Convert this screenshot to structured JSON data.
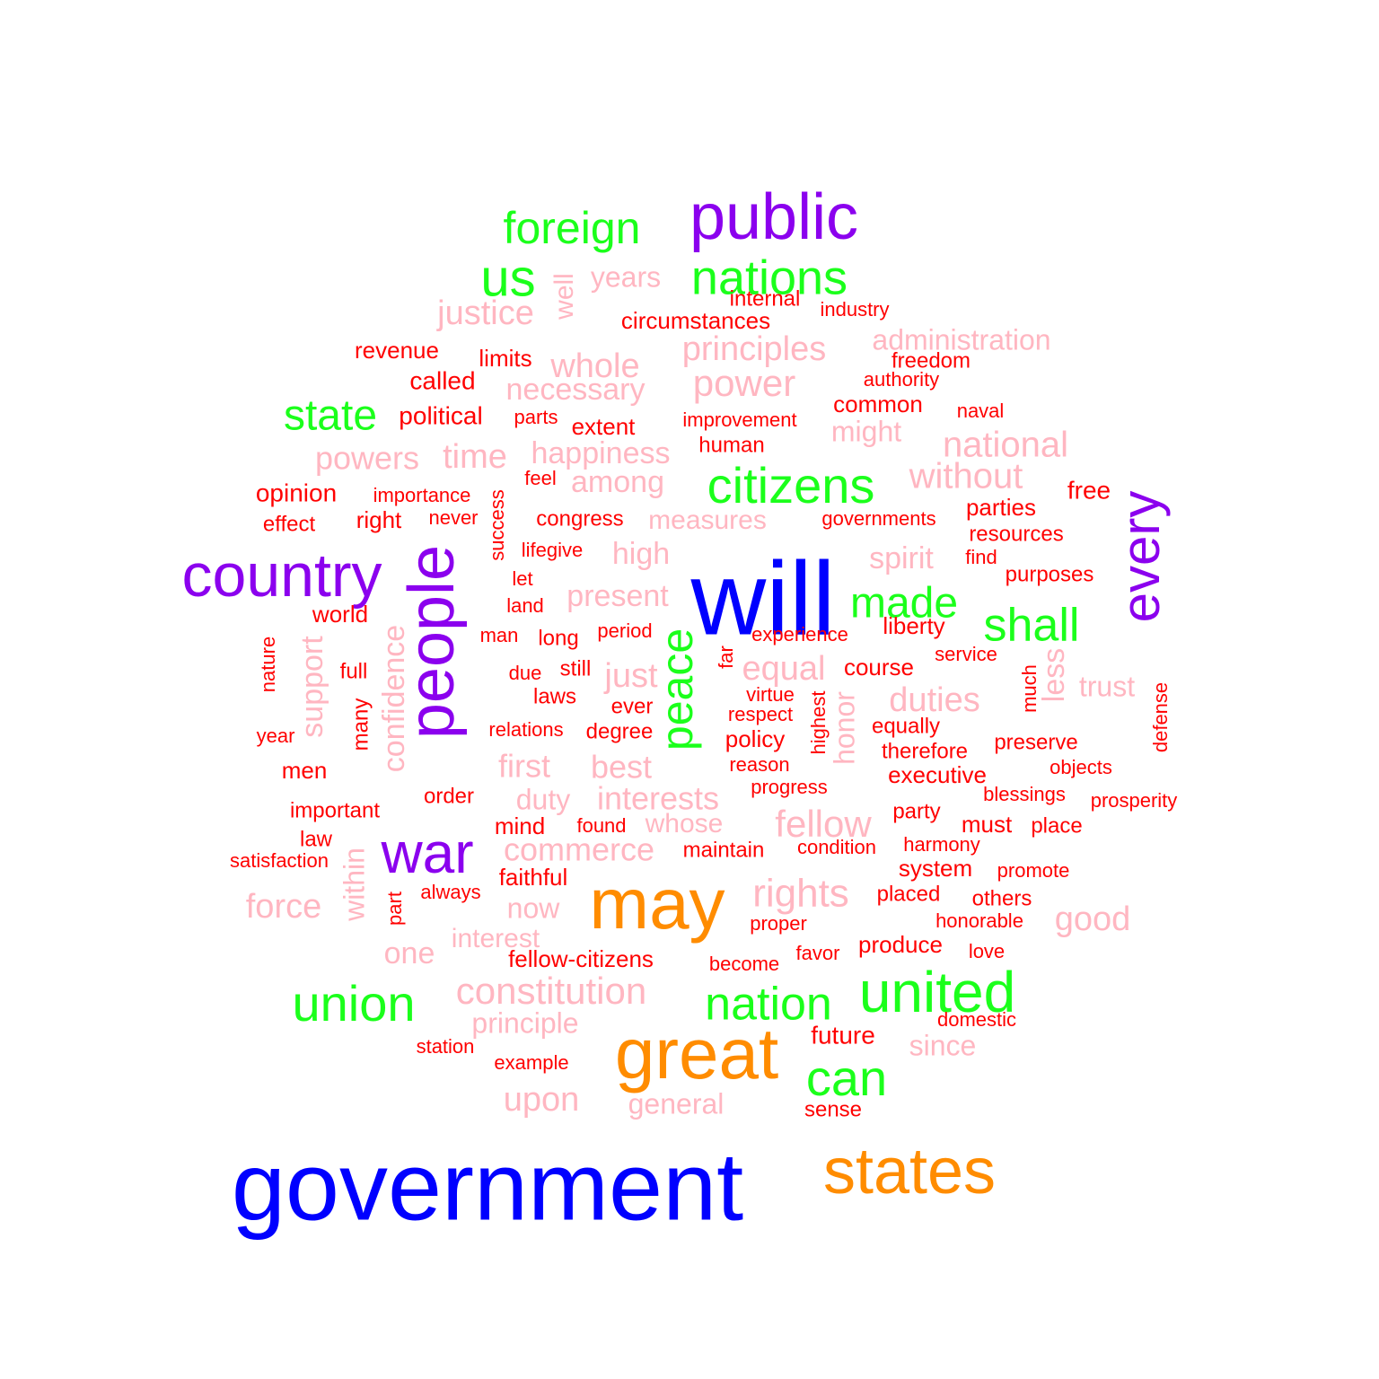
{
  "palette": {
    "blue": "#0000ff",
    "orange": "#ff8c00",
    "purple": "#8b00ee",
    "green": "#1bff1b",
    "pink": "#ffb6c1",
    "red": "#ff0000"
  },
  "words": [
    {
      "text": "will",
      "color": "blue"
    },
    {
      "text": "government",
      "color": "blue"
    },
    {
      "text": "may",
      "color": "orange"
    },
    {
      "text": "great",
      "color": "orange"
    },
    {
      "text": "states",
      "color": "orange"
    },
    {
      "text": "public",
      "color": "purple"
    },
    {
      "text": "country",
      "color": "purple"
    },
    {
      "text": "people",
      "color": "purple"
    },
    {
      "text": "every",
      "color": "purple"
    },
    {
      "text": "war",
      "color": "purple"
    },
    {
      "text": "foreign",
      "color": "green"
    },
    {
      "text": "us",
      "color": "green"
    },
    {
      "text": "nations",
      "color": "green"
    },
    {
      "text": "state",
      "color": "green"
    },
    {
      "text": "citizens",
      "color": "green"
    },
    {
      "text": "made",
      "color": "green"
    },
    {
      "text": "shall",
      "color": "green"
    },
    {
      "text": "peace",
      "color": "green"
    },
    {
      "text": "union",
      "color": "green"
    },
    {
      "text": "nation",
      "color": "green"
    },
    {
      "text": "united",
      "color": "green"
    },
    {
      "text": "can",
      "color": "green"
    },
    {
      "text": "years",
      "color": "pink"
    },
    {
      "text": "well",
      "color": "pink"
    },
    {
      "text": "justice",
      "color": "pink"
    },
    {
      "text": "administration",
      "color": "pink"
    },
    {
      "text": "principles",
      "color": "pink"
    },
    {
      "text": "whole",
      "color": "pink"
    },
    {
      "text": "necessary",
      "color": "pink"
    },
    {
      "text": "power",
      "color": "pink"
    },
    {
      "text": "might",
      "color": "pink"
    },
    {
      "text": "national",
      "color": "pink"
    },
    {
      "text": "powers",
      "color": "pink"
    },
    {
      "text": "time",
      "color": "pink"
    },
    {
      "text": "happiness",
      "color": "pink"
    },
    {
      "text": "among",
      "color": "pink"
    },
    {
      "text": "without",
      "color": "pink"
    },
    {
      "text": "measures",
      "color": "pink"
    },
    {
      "text": "high",
      "color": "pink"
    },
    {
      "text": "spirit",
      "color": "pink"
    },
    {
      "text": "present",
      "color": "pink"
    },
    {
      "text": "confidence",
      "color": "pink"
    },
    {
      "text": "support",
      "color": "pink"
    },
    {
      "text": "just",
      "color": "pink"
    },
    {
      "text": "equal",
      "color": "pink"
    },
    {
      "text": "duties",
      "color": "pink"
    },
    {
      "text": "less",
      "color": "pink"
    },
    {
      "text": "trust",
      "color": "pink"
    },
    {
      "text": "honor",
      "color": "pink"
    },
    {
      "text": "first",
      "color": "pink"
    },
    {
      "text": "best",
      "color": "pink"
    },
    {
      "text": "duty",
      "color": "pink"
    },
    {
      "text": "interests",
      "color": "pink"
    },
    {
      "text": "whose",
      "color": "pink"
    },
    {
      "text": "fellow",
      "color": "pink"
    },
    {
      "text": "commerce",
      "color": "pink"
    },
    {
      "text": "within",
      "color": "pink"
    },
    {
      "text": "force",
      "color": "pink"
    },
    {
      "text": "now",
      "color": "pink"
    },
    {
      "text": "rights",
      "color": "pink"
    },
    {
      "text": "good",
      "color": "pink"
    },
    {
      "text": "interest",
      "color": "pink"
    },
    {
      "text": "one",
      "color": "pink"
    },
    {
      "text": "constitution",
      "color": "pink"
    },
    {
      "text": "principle",
      "color": "pink"
    },
    {
      "text": "since",
      "color": "pink"
    },
    {
      "text": "upon",
      "color": "pink"
    },
    {
      "text": "general",
      "color": "pink"
    },
    {
      "text": "internal",
      "color": "red"
    },
    {
      "text": "industry",
      "color": "red"
    },
    {
      "text": "circumstances",
      "color": "red"
    },
    {
      "text": "revenue",
      "color": "red"
    },
    {
      "text": "limits",
      "color": "red"
    },
    {
      "text": "freedom",
      "color": "red"
    },
    {
      "text": "called",
      "color": "red"
    },
    {
      "text": "authority",
      "color": "red"
    },
    {
      "text": "common",
      "color": "red"
    },
    {
      "text": "political",
      "color": "red"
    },
    {
      "text": "parts",
      "color": "red"
    },
    {
      "text": "extent",
      "color": "red"
    },
    {
      "text": "improvement",
      "color": "red"
    },
    {
      "text": "naval",
      "color": "red"
    },
    {
      "text": "human",
      "color": "red"
    },
    {
      "text": "feel",
      "color": "red"
    },
    {
      "text": "opinion",
      "color": "red"
    },
    {
      "text": "importance",
      "color": "red"
    },
    {
      "text": "success",
      "color": "red"
    },
    {
      "text": "free",
      "color": "red"
    },
    {
      "text": "effect",
      "color": "red"
    },
    {
      "text": "right",
      "color": "red"
    },
    {
      "text": "never",
      "color": "red"
    },
    {
      "text": "congress",
      "color": "red"
    },
    {
      "text": "governments",
      "color": "red"
    },
    {
      "text": "parties",
      "color": "red"
    },
    {
      "text": "resources",
      "color": "red"
    },
    {
      "text": "lifegive",
      "color": "red"
    },
    {
      "text": "find",
      "color": "red"
    },
    {
      "text": "let",
      "color": "red"
    },
    {
      "text": "purposes",
      "color": "red"
    },
    {
      "text": "land",
      "color": "red"
    },
    {
      "text": "world",
      "color": "red"
    },
    {
      "text": "liberty",
      "color": "red"
    },
    {
      "text": "man",
      "color": "red"
    },
    {
      "text": "long",
      "color": "red"
    },
    {
      "text": "period",
      "color": "red"
    },
    {
      "text": "experience",
      "color": "red"
    },
    {
      "text": "nature",
      "color": "red"
    },
    {
      "text": "far",
      "color": "red"
    },
    {
      "text": "service",
      "color": "red"
    },
    {
      "text": "full",
      "color": "red"
    },
    {
      "text": "due",
      "color": "red"
    },
    {
      "text": "still",
      "color": "red"
    },
    {
      "text": "course",
      "color": "red"
    },
    {
      "text": "much",
      "color": "red"
    },
    {
      "text": "laws",
      "color": "red"
    },
    {
      "text": "virtue",
      "color": "red"
    },
    {
      "text": "ever",
      "color": "red"
    },
    {
      "text": "respect",
      "color": "red"
    },
    {
      "text": "highest",
      "color": "red"
    },
    {
      "text": "defense",
      "color": "red"
    },
    {
      "text": "many",
      "color": "red"
    },
    {
      "text": "year",
      "color": "red"
    },
    {
      "text": "relations",
      "color": "red"
    },
    {
      "text": "degree",
      "color": "red"
    },
    {
      "text": "equally",
      "color": "red"
    },
    {
      "text": "policy",
      "color": "red"
    },
    {
      "text": "preserve",
      "color": "red"
    },
    {
      "text": "therefore",
      "color": "red"
    },
    {
      "text": "reason",
      "color": "red"
    },
    {
      "text": "men",
      "color": "red"
    },
    {
      "text": "objects",
      "color": "red"
    },
    {
      "text": "executive",
      "color": "red"
    },
    {
      "text": "progress",
      "color": "red"
    },
    {
      "text": "order",
      "color": "red"
    },
    {
      "text": "blessings",
      "color": "red"
    },
    {
      "text": "prosperity",
      "color": "red"
    },
    {
      "text": "important",
      "color": "red"
    },
    {
      "text": "party",
      "color": "red"
    },
    {
      "text": "mind",
      "color": "red"
    },
    {
      "text": "found",
      "color": "red"
    },
    {
      "text": "must",
      "color": "red"
    },
    {
      "text": "place",
      "color": "red"
    },
    {
      "text": "law",
      "color": "red"
    },
    {
      "text": "maintain",
      "color": "red"
    },
    {
      "text": "condition",
      "color": "red"
    },
    {
      "text": "harmony",
      "color": "red"
    },
    {
      "text": "satisfaction",
      "color": "red"
    },
    {
      "text": "system",
      "color": "red"
    },
    {
      "text": "promote",
      "color": "red"
    },
    {
      "text": "faithful",
      "color": "red"
    },
    {
      "text": "always",
      "color": "red"
    },
    {
      "text": "placed",
      "color": "red"
    },
    {
      "text": "others",
      "color": "red"
    },
    {
      "text": "part",
      "color": "red"
    },
    {
      "text": "proper",
      "color": "red"
    },
    {
      "text": "honorable",
      "color": "red"
    },
    {
      "text": "produce",
      "color": "red"
    },
    {
      "text": "favor",
      "color": "red"
    },
    {
      "text": "love",
      "color": "red"
    },
    {
      "text": "fellow-citizens",
      "color": "red"
    },
    {
      "text": "become",
      "color": "red"
    },
    {
      "text": "domestic",
      "color": "red"
    },
    {
      "text": "future",
      "color": "red"
    },
    {
      "text": "station",
      "color": "red"
    },
    {
      "text": "example",
      "color": "red"
    },
    {
      "text": "sense",
      "color": "red"
    }
  ]
}
